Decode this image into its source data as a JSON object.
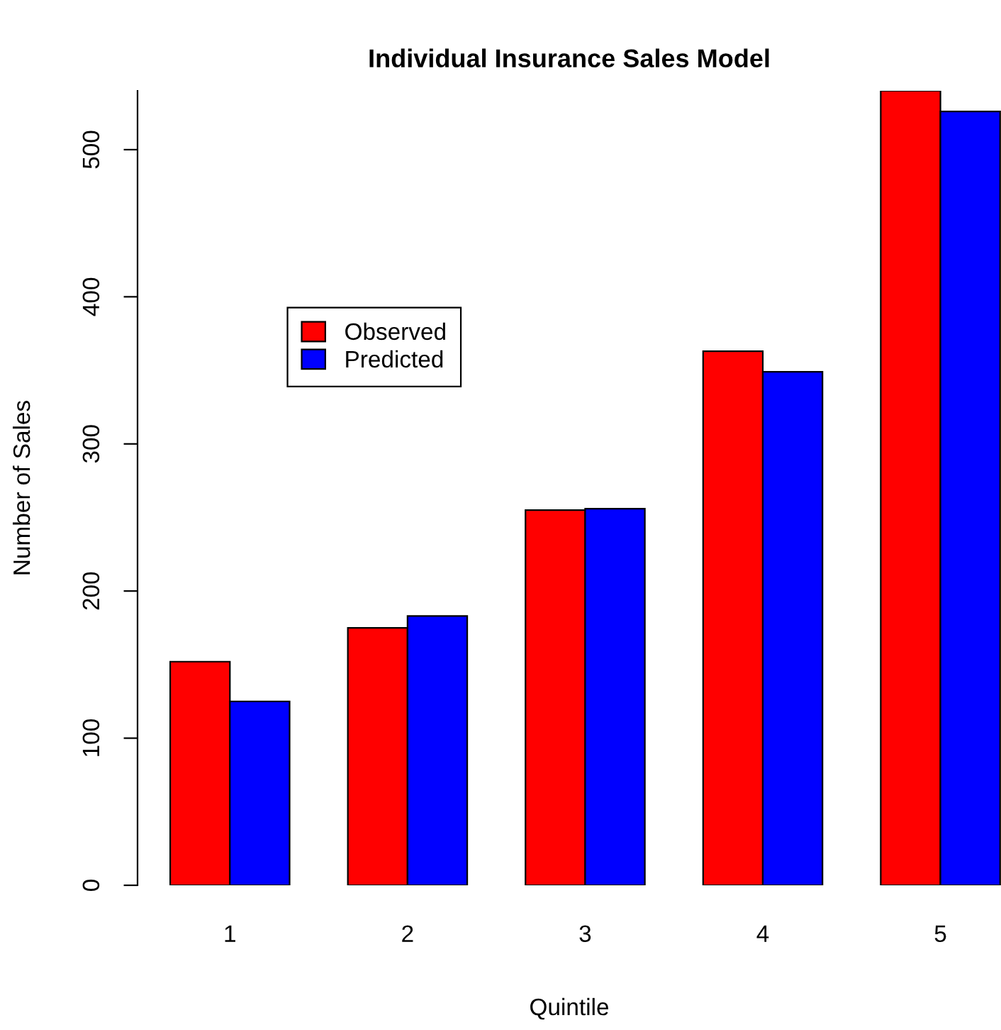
{
  "chart_data": {
    "type": "bar",
    "title": "Individual Insurance Sales Model",
    "xlabel": "Quintile",
    "ylabel": "Number of Sales",
    "categories": [
      "1",
      "2",
      "3",
      "4",
      "5"
    ],
    "series": [
      {
        "name": "Observed",
        "color": "#ff0000",
        "values": [
          152,
          175,
          255,
          363,
          540
        ]
      },
      {
        "name": "Predicted",
        "color": "#0000ff",
        "values": [
          125,
          183,
          256,
          349,
          526
        ]
      }
    ],
    "ylim": [
      0,
      540
    ],
    "yticks": [
      0,
      100,
      200,
      300,
      400,
      500
    ],
    "grid": false,
    "legend": "left"
  }
}
